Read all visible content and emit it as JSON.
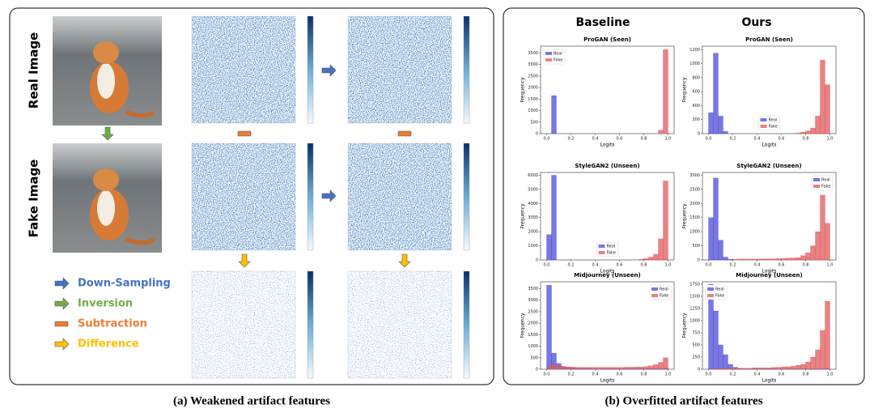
{
  "panel_a": {
    "labels": [
      "Real Image",
      "Fake Image"
    ],
    "legend": [
      {
        "label": "Down-Sampling",
        "color": "#4472c4"
      },
      {
        "label": "Inversion",
        "color": "#70ad47"
      },
      {
        "label": "Subtraction",
        "color": "#ed7d31"
      },
      {
        "label": "Difference",
        "color": "#ffc000"
      }
    ],
    "caption": "(a) Weakened artifact features"
  },
  "panel_b": {
    "columns": [
      "Baseline",
      "Ours"
    ],
    "caption": "(b) Overfitted artifact features"
  },
  "chart_data": [
    {
      "type": "histogram",
      "title": "ProGAN (Seen)",
      "x_label": "Logits",
      "y_label": "Frequency",
      "legend": "upper left",
      "bins": [
        0,
        0.04,
        0.08,
        0.12,
        0.16,
        0.2,
        0.24,
        0.28,
        0.32,
        0.36,
        0.4,
        0.44,
        0.48,
        0.52,
        0.56,
        0.6,
        0.64,
        0.68,
        0.72,
        0.76,
        0.8,
        0.84,
        0.88,
        0.92,
        0.96,
        1
      ],
      "series": [
        {
          "name": "Real",
          "color": "#4b4bd8",
          "values": [
            0,
            1650,
            0,
            0,
            0,
            0,
            0,
            0,
            0,
            0,
            0,
            0,
            0,
            0,
            0,
            0,
            0,
            0,
            0,
            0,
            0,
            0,
            0,
            0,
            0
          ]
        },
        {
          "name": "Fake",
          "color": "#e0585b",
          "values": [
            0,
            0,
            0,
            0,
            0,
            0,
            0,
            0,
            0,
            0,
            0,
            0,
            0,
            0,
            0,
            0,
            0,
            0,
            0,
            0,
            0,
            0,
            0,
            150,
            3650
          ]
        }
      ],
      "xlim": [
        -0.05,
        1.05
      ],
      "xticks": [
        {
          "value": 0,
          "label": "0.0"
        },
        0.2,
        0.4,
        0.6,
        0.8,
        {
          "value": 1,
          "label": "1.0"
        }
      ],
      "ylim": [
        0,
        3800
      ],
      "yticks": [
        0,
        500,
        1000,
        1500,
        2000,
        2500,
        3000,
        3500
      ]
    },
    {
      "type": "histogram",
      "title": "ProGAN (Seen)",
      "x_label": "Logits",
      "y_label": "Frequency",
      "legend": "lower center",
      "bins": [
        0,
        0.04,
        0.08,
        0.12,
        0.16,
        0.2,
        0.24,
        0.28,
        0.32,
        0.36,
        0.4,
        0.44,
        0.48,
        0.52,
        0.56,
        0.6,
        0.64,
        0.68,
        0.72,
        0.76,
        0.8,
        0.84,
        0.88,
        0.92,
        0.96,
        1
      ],
      "series": [
        {
          "name": "Real",
          "color": "#4b4bd8",
          "values": [
            300,
            1150,
            250,
            30,
            0,
            0,
            0,
            0,
            0,
            0,
            0,
            0,
            0,
            0,
            0,
            0,
            0,
            0,
            0,
            0,
            0,
            0,
            0,
            0,
            0
          ]
        },
        {
          "name": "Fake",
          "color": "#e0585b",
          "values": [
            0,
            0,
            0,
            0,
            0,
            0,
            0,
            0,
            0,
            0,
            0,
            0,
            0,
            0,
            0,
            0,
            0,
            0,
            10,
            20,
            40,
            80,
            250,
            1050,
            700
          ]
        }
      ],
      "xlim": [
        -0.05,
        1.05
      ],
      "xticks": [
        {
          "value": 0,
          "label": "0.0"
        },
        0.2,
        0.4,
        0.6,
        0.8,
        {
          "value": 1,
          "label": "1.0"
        }
      ],
      "ylim": [
        0,
        1250
      ],
      "yticks": [
        0,
        200,
        400,
        600,
        800,
        1000,
        1200
      ]
    },
    {
      "type": "histogram",
      "title": "StyleGAN2 (Unseen)",
      "x_label": "Logits",
      "y_label": "Frequency",
      "legend": "lower center",
      "bins": [
        0,
        0.04,
        0.08,
        0.12,
        0.16,
        0.2,
        0.24,
        0.28,
        0.32,
        0.36,
        0.4,
        0.44,
        0.48,
        0.52,
        0.56,
        0.6,
        0.64,
        0.68,
        0.72,
        0.76,
        0.8,
        0.84,
        0.88,
        0.92,
        0.96,
        1
      ],
      "series": [
        {
          "name": "Real",
          "color": "#4b4bd8",
          "values": [
            1800,
            6000,
            0,
            0,
            0,
            0,
            0,
            0,
            0,
            0,
            0,
            0,
            0,
            0,
            0,
            0,
            0,
            0,
            0,
            0,
            0,
            0,
            0,
            0,
            0
          ]
        },
        {
          "name": "Fake",
          "color": "#e0585b",
          "values": [
            0,
            0,
            0,
            0,
            0,
            0,
            0,
            0,
            0,
            0,
            0,
            0,
            0,
            0,
            0,
            0,
            0,
            0,
            0,
            50,
            100,
            200,
            400,
            1500,
            5600
          ]
        }
      ],
      "xlim": [
        -0.05,
        1.05
      ],
      "xticks": [
        {
          "value": 0,
          "label": "0.0"
        },
        0.2,
        0.4,
        0.6,
        0.8,
        {
          "value": 1,
          "label": "1.0"
        }
      ],
      "ylim": [
        0,
        6200
      ],
      "yticks": [
        0,
        1000,
        2000,
        3000,
        4000,
        5000,
        6000
      ]
    },
    {
      "type": "histogram",
      "title": "StyleGAN2 (Unseen)",
      "x_label": "Logits",
      "y_label": "Frequency",
      "legend": "upper right",
      "bins": [
        0,
        0.04,
        0.08,
        0.12,
        0.16,
        0.2,
        0.24,
        0.28,
        0.32,
        0.36,
        0.4,
        0.44,
        0.48,
        0.52,
        0.56,
        0.6,
        0.64,
        0.68,
        0.72,
        0.76,
        0.8,
        0.84,
        0.88,
        0.92,
        0.96,
        1
      ],
      "series": [
        {
          "name": "Real",
          "color": "#4b4bd8",
          "values": [
            1500,
            2900,
            700,
            100,
            20,
            0,
            0,
            0,
            0,
            0,
            0,
            0,
            0,
            0,
            0,
            0,
            0,
            0,
            0,
            0,
            0,
            0,
            0,
            0,
            0
          ]
        },
        {
          "name": "Fake",
          "color": "#e0585b",
          "values": [
            0,
            0,
            0,
            0,
            0,
            20,
            30,
            30,
            30,
            30,
            30,
            40,
            40,
            40,
            50,
            50,
            60,
            70,
            80,
            150,
            250,
            500,
            1000,
            2300,
            1300
          ]
        }
      ],
      "xlim": [
        -0.05,
        1.05
      ],
      "xticks": [
        {
          "value": 0,
          "label": "0.0"
        },
        0.2,
        0.4,
        0.6,
        0.8,
        {
          "value": 1,
          "label": "1.0"
        }
      ],
      "ylim": [
        0,
        3100
      ],
      "yticks": [
        0,
        500,
        1000,
        1500,
        2000,
        2500,
        3000
      ]
    },
    {
      "type": "histogram",
      "title": "Midjourney (Unseen)",
      "x_label": "Logits",
      "y_label": "Frequency",
      "legend": "upper right",
      "bins": [
        0,
        0.04,
        0.08,
        0.12,
        0.16,
        0.2,
        0.24,
        0.28,
        0.32,
        0.36,
        0.4,
        0.44,
        0.48,
        0.52,
        0.56,
        0.6,
        0.64,
        0.68,
        0.72,
        0.76,
        0.8,
        0.84,
        0.88,
        0.92,
        0.96,
        1
      ],
      "series": [
        {
          "name": "Real",
          "color": "#4b4bd8",
          "values": [
            3650,
            700,
            250,
            120,
            80,
            60,
            50,
            40,
            40,
            30,
            30,
            30,
            30,
            30,
            30,
            30,
            30,
            30,
            30,
            30,
            30,
            30,
            30,
            40,
            50
          ]
        },
        {
          "name": "Fake",
          "color": "#e0585b",
          "values": [
            100,
            200,
            150,
            120,
            100,
            90,
            80,
            80,
            80,
            80,
            80,
            80,
            80,
            80,
            80,
            80,
            90,
            90,
            100,
            100,
            120,
            150,
            200,
            300,
            500
          ]
        }
      ],
      "xlim": [
        -0.05,
        1.05
      ],
      "xticks": [
        {
          "value": 0,
          "label": "0.0"
        },
        0.2,
        0.4,
        0.6,
        0.8,
        {
          "value": 1,
          "label": "1.0"
        }
      ],
      "ylim": [
        0,
        3800
      ],
      "yticks": [
        0,
        500,
        1000,
        1500,
        2000,
        2500,
        3000,
        3500
      ]
    },
    {
      "type": "histogram",
      "title": "Midjourney (Unseen)",
      "x_label": "Logits",
      "y_label": "Frequency",
      "legend": "upper left",
      "bins": [
        0,
        0.04,
        0.08,
        0.12,
        0.16,
        0.2,
        0.24,
        0.28,
        0.32,
        0.36,
        0.4,
        0.44,
        0.48,
        0.52,
        0.56,
        0.6,
        0.64,
        0.68,
        0.72,
        0.76,
        0.8,
        0.84,
        0.88,
        0.92,
        0.96,
        1
      ],
      "series": [
        {
          "name": "Real",
          "color": "#4b4bd8",
          "values": [
            1750,
            1200,
            500,
            300,
            100,
            40,
            20,
            10,
            10,
            10,
            10,
            10,
            10,
            10,
            10,
            10,
            10,
            10,
            10,
            10,
            10,
            10,
            10,
            10,
            10
          ]
        },
        {
          "name": "Fake",
          "color": "#e0585b",
          "values": [
            0,
            10,
            10,
            20,
            20,
            20,
            20,
            20,
            20,
            30,
            30,
            30,
            30,
            40,
            40,
            50,
            50,
            60,
            80,
            100,
            150,
            250,
            400,
            800,
            1400
          ]
        }
      ],
      "xlim": [
        -0.05,
        1.05
      ],
      "xticks": [
        {
          "value": 0,
          "label": "0.0"
        },
        0.2,
        0.4,
        0.6,
        0.8,
        {
          "value": 1,
          "label": "1.0"
        }
      ],
      "ylim": [
        0,
        1800
      ],
      "yticks": [
        0,
        250,
        500,
        750,
        1000,
        1250,
        1500,
        1750
      ]
    }
  ]
}
